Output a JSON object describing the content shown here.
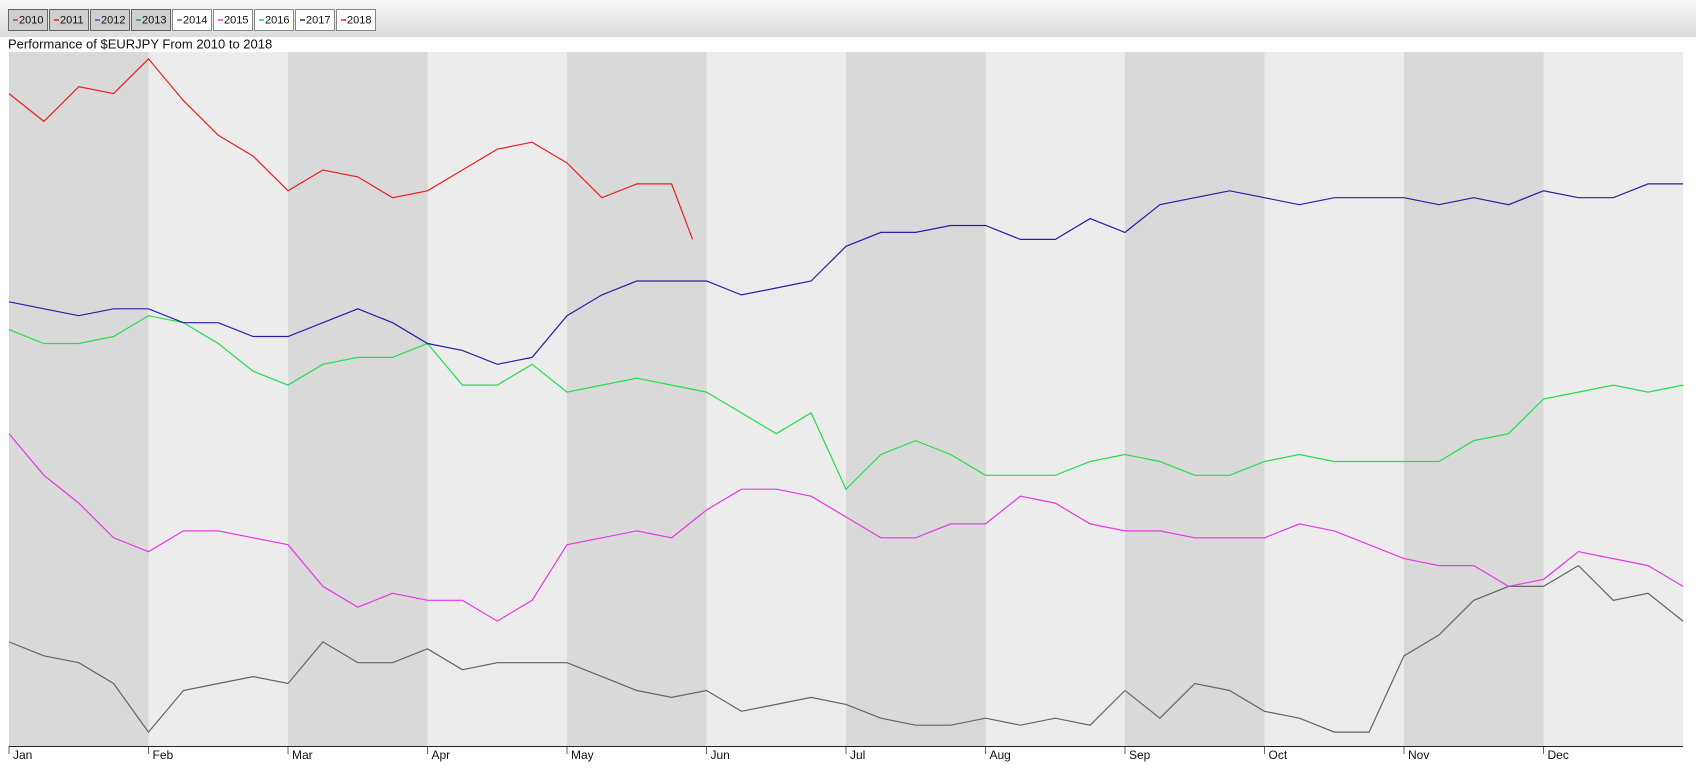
{
  "chart_data": {
    "type": "line",
    "title": "Performance of $EURJPY From 2010 to 2018",
    "x": [
      0,
      0.25,
      0.5,
      0.75,
      1,
      1.25,
      1.5,
      1.75,
      2,
      2.25,
      2.5,
      2.75,
      3,
      3.25,
      3.5,
      3.75,
      4,
      4.25,
      4.5,
      4.75,
      5,
      5.25,
      5.5,
      5.75,
      6,
      6.25,
      6.5,
      6.75,
      7,
      7.25,
      7.5,
      7.75,
      8,
      8.25,
      8.5,
      8.75,
      9,
      9.25,
      9.5,
      9.75,
      10,
      10.25,
      10.5,
      10.75,
      11,
      11.25,
      11.5,
      11.75,
      12
    ],
    "xlim": [
      0,
      12
    ],
    "xticks": [
      {
        "value": 0,
        "label": "Jan"
      },
      {
        "value": 1,
        "label": "Feb"
      },
      {
        "value": 2,
        "label": "Mar"
      },
      {
        "value": 3,
        "label": "Apr"
      },
      {
        "value": 4,
        "label": "May"
      },
      {
        "value": 5,
        "label": "Jun"
      },
      {
        "value": 6,
        "label": "Jul"
      },
      {
        "value": 7,
        "label": "Aug"
      },
      {
        "value": 8,
        "label": "Sep"
      },
      {
        "value": 9,
        "label": "Oct"
      },
      {
        "value": 10,
        "label": "Nov"
      },
      {
        "value": 11,
        "label": "Dec"
      }
    ],
    "ylim": [
      0,
      100
    ],
    "series": [
      {
        "name": "2010",
        "color": "#d9362e",
        "visible": false
      },
      {
        "name": "2011",
        "color": "#e8221c",
        "visible": false
      },
      {
        "name": "2012",
        "color": "#6a3fbf",
        "visible": false
      },
      {
        "name": "2013",
        "color": "#2a8a8a",
        "visible": false
      },
      {
        "name": "2014",
        "color": "#666666",
        "visible": true,
        "values": [
          15,
          13,
          12,
          9,
          2,
          8,
          9,
          10,
          9,
          15,
          12,
          12,
          14,
          11,
          12,
          12,
          12,
          10,
          8,
          7,
          8,
          5,
          6,
          7,
          6,
          4,
          3,
          3,
          4,
          3,
          4,
          3,
          8,
          4,
          9,
          8,
          5,
          4,
          2,
          2,
          13,
          16,
          21,
          23,
          23,
          26,
          21,
          22,
          18
        ]
      },
      {
        "name": "2015",
        "color": "#e63ae6",
        "visible": true,
        "values": [
          45,
          39,
          35,
          30,
          28,
          31,
          31,
          30,
          29,
          23,
          20,
          22,
          21,
          21,
          18,
          21,
          29,
          30,
          31,
          30,
          34,
          37,
          37,
          36,
          33,
          30,
          30,
          32,
          32,
          36,
          35,
          32,
          31,
          31,
          30,
          30,
          30,
          32,
          31,
          29,
          27,
          26,
          26,
          23,
          24,
          28,
          27,
          26,
          23
        ]
      },
      {
        "name": "2016",
        "color": "#22e04a",
        "visible": true,
        "values": [
          60,
          58,
          58,
          59,
          62,
          61,
          58,
          54,
          52,
          55,
          56,
          56,
          58,
          52,
          52,
          55,
          51,
          52,
          53,
          52,
          51,
          48,
          45,
          48,
          37,
          42,
          44,
          42,
          39,
          39,
          39,
          41,
          42,
          41,
          39,
          39,
          41,
          42,
          41,
          41,
          41,
          41,
          44,
          45,
          50,
          51,
          52,
          51,
          52
        ]
      },
      {
        "name": "2017",
        "color": "#2a1fa8",
        "visible": true,
        "values": [
          64,
          63,
          62,
          63,
          63,
          61,
          61,
          59,
          59,
          61,
          63,
          61,
          58,
          57,
          55,
          56,
          62,
          65,
          67,
          67,
          67,
          65,
          66,
          67,
          72,
          74,
          74,
          75,
          75,
          73,
          73,
          76,
          74,
          78,
          79,
          80,
          79,
          78,
          79,
          79,
          79,
          78,
          79,
          78,
          80,
          79,
          79,
          81,
          81
        ]
      },
      {
        "name": "2018",
        "color": "#e8221c",
        "visible": true,
        "x": [
          0,
          0.25,
          0.5,
          0.75,
          1,
          1.25,
          1.5,
          1.75,
          2,
          2.25,
          2.5,
          2.75,
          3,
          3.25,
          3.5,
          3.75,
          4,
          4.25,
          4.5,
          4.75,
          4.9
        ],
        "values": [
          94,
          90,
          95,
          94,
          99,
          93,
          88,
          85,
          80,
          83,
          82,
          79,
          80,
          83,
          86,
          87,
          84,
          79,
          81,
          81,
          73
        ]
      }
    ]
  }
}
